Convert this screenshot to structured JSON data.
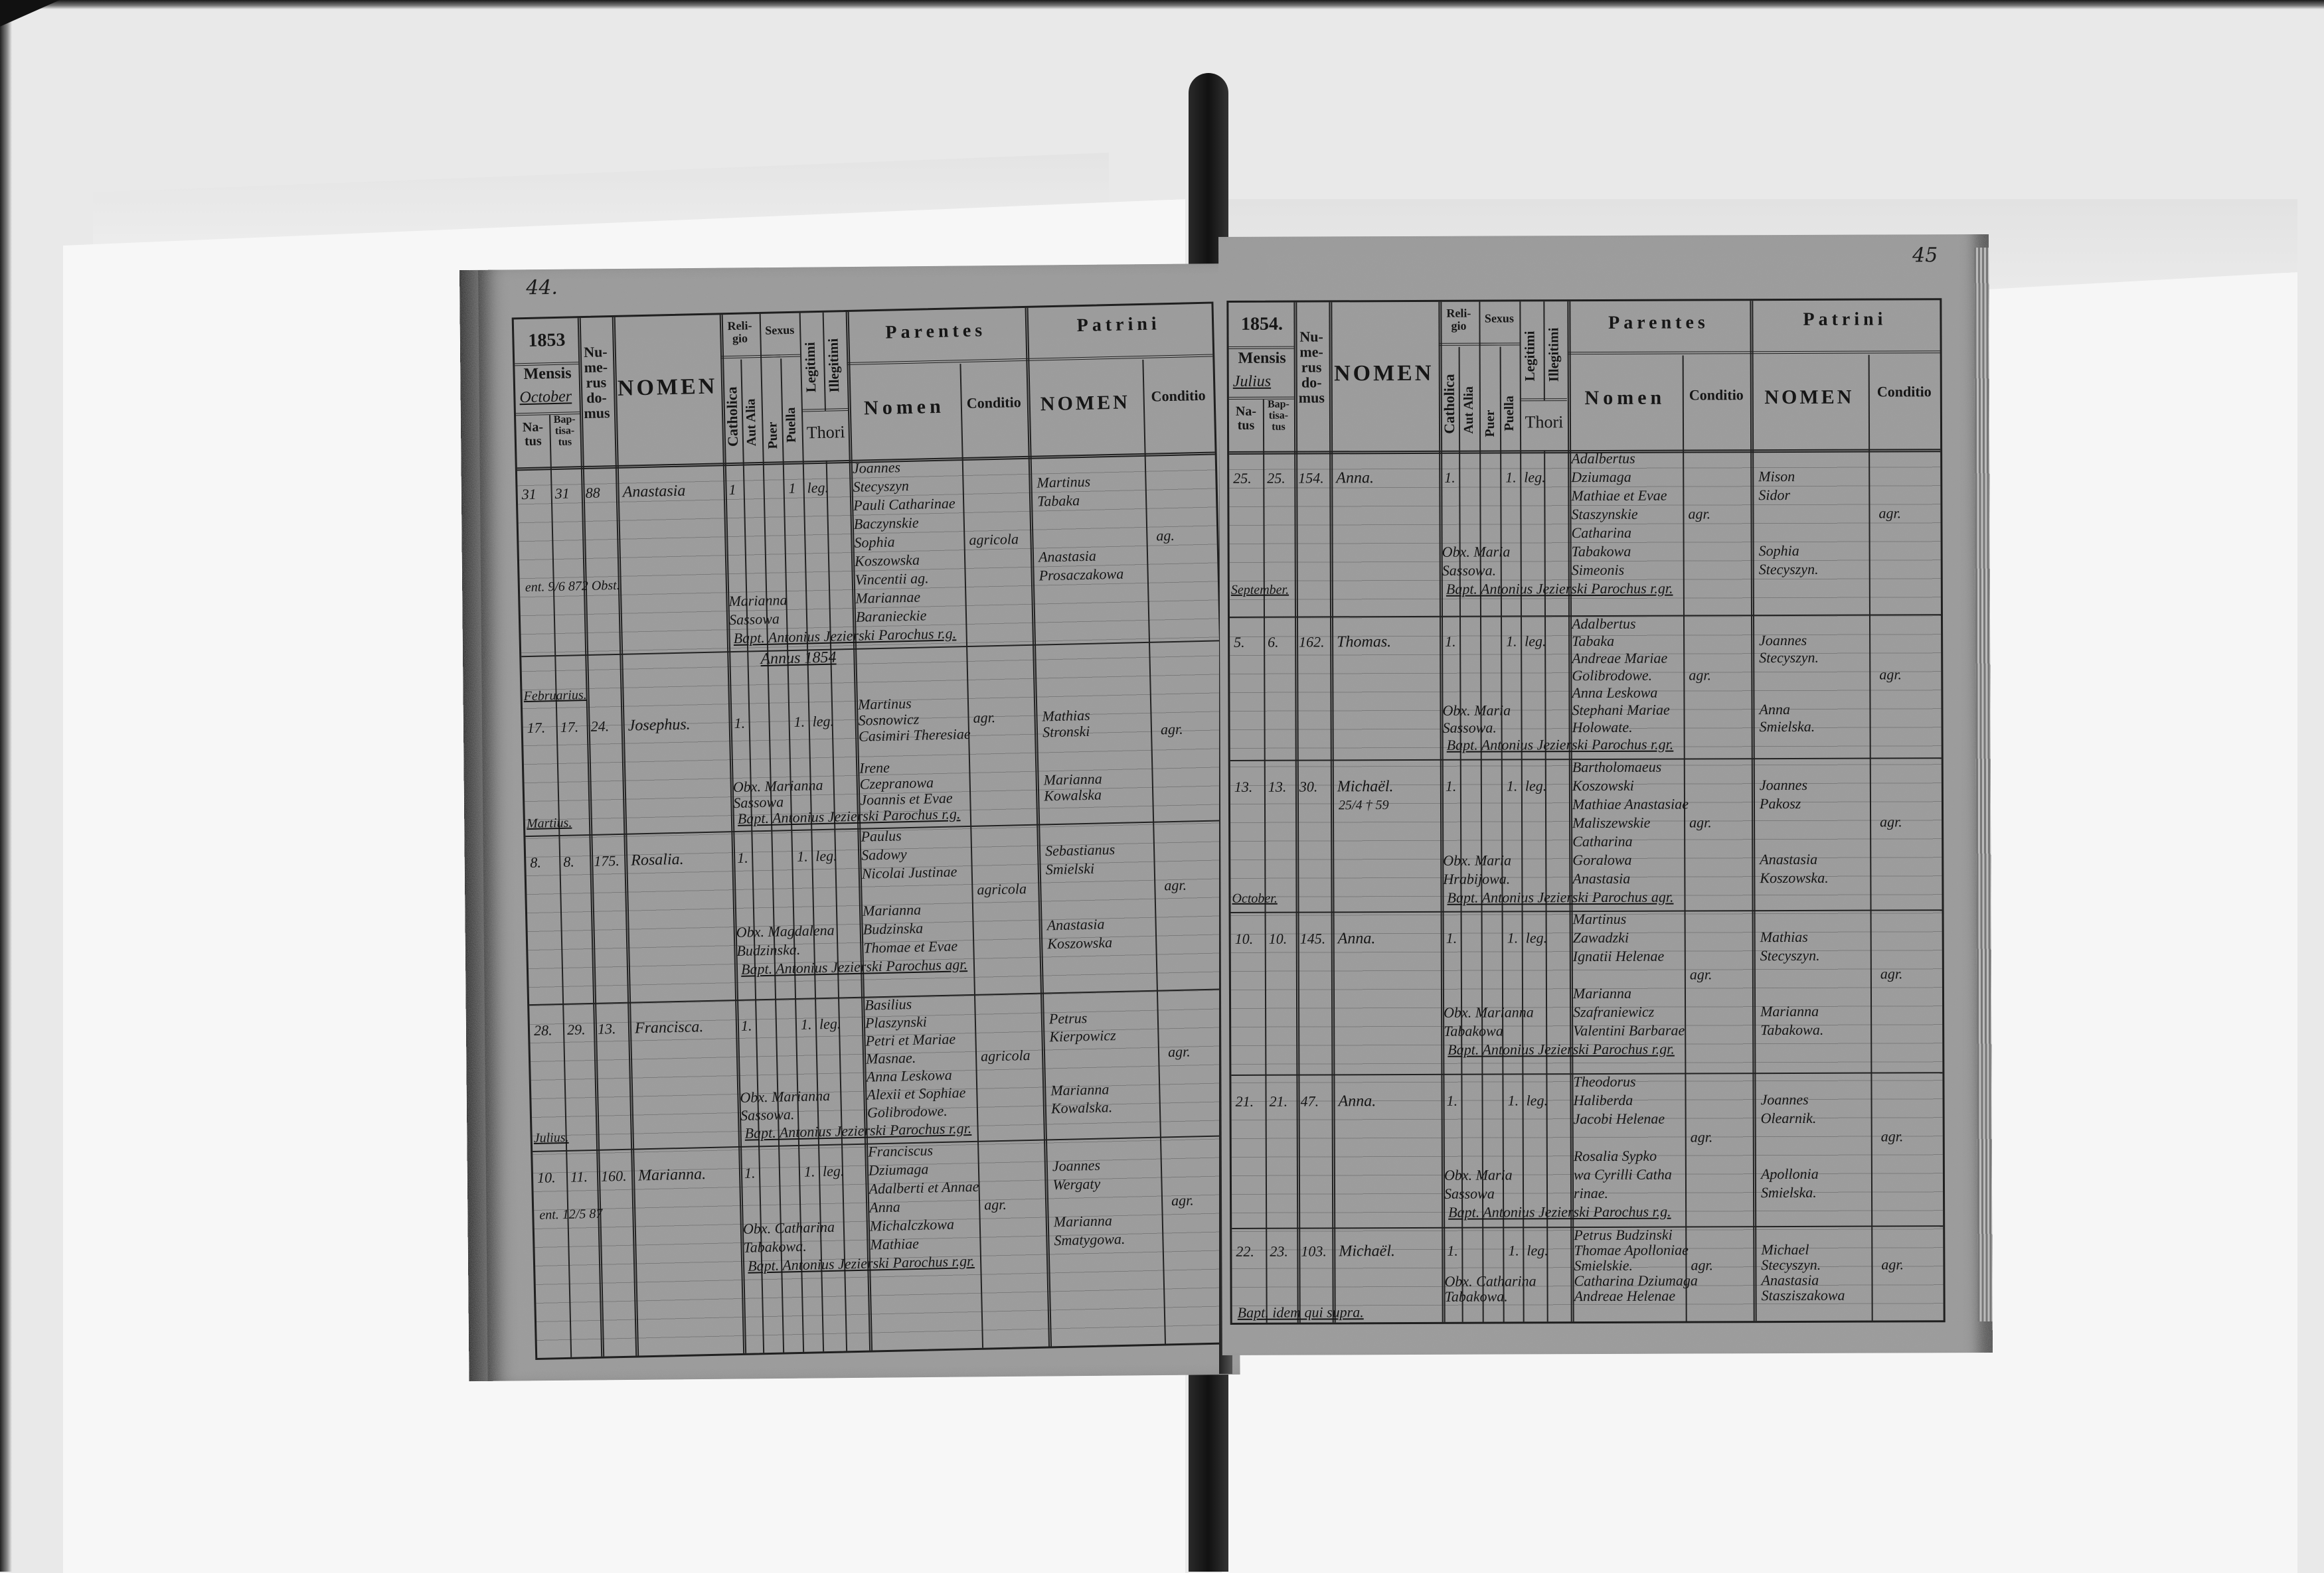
{
  "header_labels": {
    "mensis": "Mensis",
    "natus": "Na-tus",
    "baptisatus": "Bap-tisa-tus",
    "numerus_domus": "Nu-me-rus do-mus",
    "nomen": "NOMEN",
    "religio": "Reli-gio",
    "catholica": "Catholica",
    "aut_alia": "Aut Alia",
    "sexus": "Sexus",
    "puer": "Puer",
    "puella": "Puella",
    "legitimi": "Legitimi",
    "illegitimi": "Illegitimi",
    "thori": "Thori",
    "parentes": "Parentes",
    "parentes_nomen": "Nomen",
    "parentes_conditio": "Conditio",
    "patrini": "Patrini",
    "patrini_nomen": "NOMEN",
    "patrini_conditio": "Conditio"
  },
  "pages": [
    {
      "page_number": "44.",
      "year": "1853",
      "month": "October",
      "entries": [
        {
          "natus": "31",
          "baptisatus": "31",
          "domus": "88",
          "nomen": "Anastasia",
          "catholica": "1",
          "puella": "1",
          "legitimi": "leg.",
          "parentes": [
            "Joannes",
            "Stecyszyn",
            "Pauli Catharinae",
            "Baczynskie",
            "Sophia",
            "Koszowska",
            "Vincentii ag.",
            "Mariannae",
            "Baranieckie"
          ],
          "parentes_conditio": "agricola",
          "patrini": [
            "Martinus",
            "Tabaka",
            "Anastasia",
            "Prosaczakowa"
          ],
          "patrini_conditio": "ag.",
          "note": "ent. 9/6 872 Obst.",
          "obstetrix": [
            "Marianna",
            "Sassowa"
          ],
          "baptizans": "Bapt. Antonius Jezierski Parochus r.g."
        },
        {
          "year_heading": "Annus 1854",
          "month_heading": "Februarius.",
          "natus": "17.",
          "baptisatus": "17.",
          "domus": "24.",
          "nomen": "Josephus.",
          "catholica": "1.",
          "puella": "1.",
          "legitimi": "leg.",
          "parentes": [
            "Martinus",
            "Sosnowicz",
            "Casimiri Theresiae",
            "",
            "Irene",
            "Czepranowa",
            "Joannis et Evae"
          ],
          "parentes_conditio": "agr.",
          "patrini": [
            "Mathias",
            "Stronski",
            "Marianna",
            "Kowalska"
          ],
          "patrini_conditio": "agr.",
          "obstetrix": [
            "Obx. Marianna",
            "Sassowa"
          ],
          "baptizans": "Bapt. Antonius Jezierski Parochus r.g.",
          "month_footer": "Martius."
        },
        {
          "natus": "8.",
          "baptisatus": "8.",
          "domus": "175.",
          "nomen": "Rosalia.",
          "catholica": "1.",
          "puella": "1.",
          "legitimi": "leg.",
          "parentes": [
            "Paulus",
            "Sadowy",
            "Nicolai Justinae",
            "",
            "Marianna",
            "Budzinska",
            "Thomae et Evae"
          ],
          "parentes_conditio": "agricola",
          "patrini": [
            "Sebastianus",
            "Smielski",
            "Anastasia",
            "Koszowska"
          ],
          "patrini_conditio": "agr.",
          "obstetrix": [
            "Obx. Magdalena",
            "Budzinska."
          ],
          "baptizans": "Bapt. Antonius Jezierski Parochus agr."
        },
        {
          "natus": "28.",
          "baptisatus": "29.",
          "domus": "13.",
          "nomen": "Francisca.",
          "catholica": "1.",
          "puella": "1.",
          "legitimi": "leg.",
          "parentes": [
            "Basilius",
            "Plaszynski",
            "Petri et Mariae",
            "Masnae.",
            "Anna Leskowa",
            "Alexii et Sophiae",
            "Golibrodowe."
          ],
          "parentes_conditio": "agricola",
          "patrini": [
            "Petrus",
            "Kierpowicz",
            "Marianna",
            "Kowalska."
          ],
          "patrini_conditio": "agr.",
          "obstetrix": [
            "Obx. Marianna",
            "Sassowa."
          ],
          "baptizans": "Bapt. Antonius Jezierski Parochus r.gr.",
          "month_footer": "Julius."
        },
        {
          "natus": "10.",
          "baptisatus": "11.",
          "domus": "160.",
          "nomen": "Marianna.",
          "catholica": "1.",
          "puella": "1.",
          "legitimi": "leg.",
          "parentes": [
            "Franciscus",
            "Dziumaga",
            "Adalberti et Annae",
            "Anna",
            "Michalczkowa",
            "Mathiae"
          ],
          "parentes_conditio": "agr.",
          "patrini": [
            "Joannes",
            "Wergaty",
            "Marianna",
            "Smatygowa."
          ],
          "patrini_conditio": "agr.",
          "note": "ent. 12/5 87",
          "obstetrix": [
            "Obx. Catharina",
            "Tabakowa."
          ],
          "baptizans": "Bapt. Antonius Jezierski Parochus r.gr."
        }
      ]
    },
    {
      "page_number": "45",
      "year": "1854.",
      "month": "Julius",
      "entries": [
        {
          "natus": "25.",
          "baptisatus": "25.",
          "domus": "154.",
          "nomen": "Anna.",
          "catholica": "1.",
          "puella": "1.",
          "legitimi": "leg.",
          "parentes": [
            "Adalbertus",
            "Dziumaga",
            "Mathiae et Evae",
            "Staszynskie",
            "Catharina",
            "Tabakowa",
            "Simeonis"
          ],
          "parentes_conditio": "agr.",
          "patrini": [
            "Mison",
            "Sidor",
            "Sophia",
            "Stecyszyn."
          ],
          "patrini_conditio": "agr.",
          "obstetrix": [
            "Obx. Maria",
            "Sassowa."
          ],
          "baptizans": "Bapt. Antonius Jezierski Parochus r.gr.",
          "month_footer": "September."
        },
        {
          "natus": "5.",
          "baptisatus": "6.",
          "domus": "162.",
          "nomen": "Thomas.",
          "catholica": "1.",
          "puella": "1.",
          "legitimi": "leg.",
          "parentes": [
            "Adalbertus",
            "Tabaka",
            "Andreae Mariae",
            "Golibrodowe.",
            "Anna Leskowa",
            "Stephani Mariae",
            "Holowate."
          ],
          "parentes_conditio": "agr.",
          "patrini": [
            "Joannes",
            "Stecyszyn.",
            "Anna",
            "Smielska."
          ],
          "patrini_conditio": "agr.",
          "obstetrix": [
            "Obx. Maria",
            "Sassowa."
          ],
          "baptizans": "Bapt. Antonius Jezierski Parochus r.gr."
        },
        {
          "natus": "13.",
          "baptisatus": "13.",
          "domus": "30.",
          "nomen": "Michaël.",
          "catholica": "1.",
          "puella": "1.",
          "legitimi": "leg.",
          "note": "25/4 † 59",
          "parentes": [
            "Bartholomaeus",
            "Koszowski",
            "Mathiae Anastasiae",
            "Maliszewskie",
            "Catharina",
            "Goralowa",
            "Anastasia"
          ],
          "parentes_conditio": "agr.",
          "patrini": [
            "Joannes",
            "Pakosz",
            "Anastasia",
            "Koszowska."
          ],
          "patrini_conditio": "agr.",
          "obstetrix": [
            "Obx. Maria",
            "Hrabijowa."
          ],
          "baptizans": "Bapt. Antonius Jezierski Parochus agr.",
          "month_footer": "October."
        },
        {
          "natus": "10.",
          "baptisatus": "10.",
          "domus": "145.",
          "nomen": "Anna.",
          "catholica": "1.",
          "puella": "1.",
          "legitimi": "leg.",
          "parentes": [
            "Martinus",
            "Zawadzki",
            "Ignatii Helenae",
            "",
            "Marianna",
            "Szafraniewicz",
            "Valentini Barbarae"
          ],
          "parentes_conditio": "agr.",
          "patrini": [
            "Mathias",
            "Stecyszyn.",
            "Marianna",
            "Tabakowa."
          ],
          "patrini_conditio": "agr.",
          "obstetrix": [
            "Obx. Marianna",
            "Tabakowa"
          ],
          "baptizans": "Bapt. Antonius Jezierski Parochus r.gr."
        },
        {
          "natus": "21.",
          "baptisatus": "21.",
          "domus": "47.",
          "nomen": "Anna.",
          "catholica": "1.",
          "puella": "1.",
          "legitimi": "leg.",
          "parentes": [
            "Theodorus",
            "Haliberda",
            "Jacobi Helenae",
            "",
            "Rosalia Sypko",
            "wa Cyrilli Catha",
            "rinae."
          ],
          "parentes_conditio": "agr.",
          "patrini": [
            "Joannes",
            "Olearnik.",
            "Apollonia",
            "Smielska."
          ],
          "patrini_conditio": "agr.",
          "obstetrix": [
            "Obx. Maria",
            "Sassowa"
          ],
          "baptizans": "Bapt. Antonius Jezierski Parochus r.g."
        },
        {
          "natus": "22.",
          "baptisatus": "23.",
          "domus": "103.",
          "nomen": "Michaël.",
          "catholica": "1.",
          "puella": "1.",
          "legitimi": "leg.",
          "parentes": [
            "Petrus Budzinski",
            "Thomae Apolloniae",
            "Smielskie.",
            "Catharina Dziumaga",
            "Andreae Helenae"
          ],
          "parentes_conditio": "agr.",
          "patrini": [
            "Michael",
            "Stecyszyn.",
            "Anastasia",
            "Stasziszakowa"
          ],
          "patrini_conditio": "agr.",
          "obstetrix": [
            "Obx. Catharina",
            "Tabakowa."
          ],
          "baptizans": "Bapt. idem qui supra."
        }
      ]
    }
  ]
}
